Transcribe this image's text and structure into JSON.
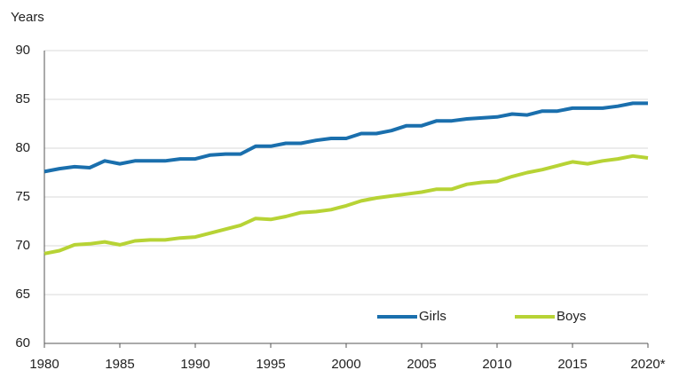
{
  "chart_data": {
    "type": "line",
    "y_label": "Years",
    "x": [
      1980,
      1981,
      1982,
      1983,
      1984,
      1985,
      1986,
      1987,
      1988,
      1989,
      1990,
      1991,
      1992,
      1993,
      1994,
      1995,
      1996,
      1997,
      1998,
      1999,
      2000,
      2001,
      2002,
      2003,
      2004,
      2005,
      2006,
      2007,
      2008,
      2009,
      2010,
      2011,
      2012,
      2013,
      2014,
      2015,
      2016,
      2017,
      2018,
      2019,
      2020
    ],
    "series": [
      {
        "name": "Girls",
        "color": "#1a6fad",
        "values": [
          77.6,
          77.9,
          78.1,
          78.0,
          78.7,
          78.4,
          78.7,
          78.7,
          78.7,
          78.9,
          78.9,
          79.3,
          79.4,
          79.4,
          80.2,
          80.2,
          80.5,
          80.5,
          80.8,
          81.0,
          81.0,
          81.5,
          81.5,
          81.8,
          82.3,
          82.3,
          82.8,
          82.8,
          83.0,
          83.1,
          83.2,
          83.5,
          83.4,
          83.8,
          83.8,
          84.1,
          84.1,
          84.1,
          84.3,
          84.6,
          84.6
        ]
      },
      {
        "name": "Boys",
        "color": "#b7d335",
        "values": [
          69.2,
          69.5,
          70.1,
          70.2,
          70.4,
          70.1,
          70.5,
          70.6,
          70.6,
          70.8,
          70.9,
          71.3,
          71.7,
          72.1,
          72.8,
          72.7,
          73.0,
          73.4,
          73.5,
          73.7,
          74.1,
          74.6,
          74.9,
          75.1,
          75.3,
          75.5,
          75.8,
          75.8,
          76.3,
          76.5,
          76.6,
          77.1,
          77.5,
          77.8,
          78.2,
          78.6,
          78.4,
          78.7,
          78.9,
          79.2,
          79.0
        ]
      }
    ],
    "xlim": [
      1980,
      2020
    ],
    "xticks": [
      1980,
      1985,
      1990,
      1995,
      2000,
      2005,
      2010,
      2015,
      {
        "value": 2020,
        "label": "2020*"
      }
    ],
    "ylim": [
      60,
      90
    ],
    "yticks": [
      60,
      65,
      70,
      75,
      80,
      85,
      90
    ],
    "grid": true,
    "legend": "bottom-right"
  }
}
